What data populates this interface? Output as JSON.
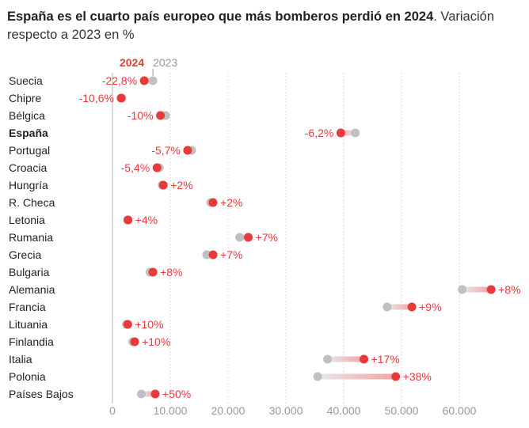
{
  "title_bold": "España es el cuarto país europeo que más bomberos perdió en 2024",
  "title_rest": ". Variación respecto a 2023 en %",
  "colors": {
    "y2024": "#e8393b",
    "y2023": "#bfbfc4",
    "label": "#e8393b",
    "grid": "#d9d9d9",
    "axis": "#999999"
  },
  "chart_data": {
    "type": "dumbbell",
    "legend": {
      "label_2024": "2024",
      "label_2023": "2023"
    },
    "xlim": [
      0,
      70000
    ],
    "xticks": [
      0,
      10000,
      20000,
      30000,
      40000,
      50000,
      60000
    ],
    "xtick_labels": [
      "0",
      "10.000",
      "20.000",
      "30.000",
      "40.000",
      "50.000",
      "60.000"
    ],
    "rows": [
      {
        "country": "Suecia",
        "v2023": 7000,
        "v2024": 5500,
        "label": "-22,8%",
        "bold": false
      },
      {
        "country": "Chipre",
        "v2023": 1650,
        "v2024": 1500,
        "label": "-10,6%",
        "bold": false
      },
      {
        "country": "Bélgica",
        "v2023": 9200,
        "v2024": 8300,
        "label": "-10%",
        "bold": false
      },
      {
        "country": "España",
        "v2023": 42000,
        "v2024": 39500,
        "label": "-6,2%",
        "bold": true
      },
      {
        "country": "Portugal",
        "v2023": 13700,
        "v2024": 13000,
        "label": "-5,7%",
        "bold": false
      },
      {
        "country": "Croacia",
        "v2023": 8100,
        "v2024": 7700,
        "label": "-5,4%",
        "bold": false
      },
      {
        "country": "Hungría",
        "v2023": 8600,
        "v2024": 8800,
        "label": "+2%",
        "bold": false
      },
      {
        "country": "R. Checa",
        "v2023": 17000,
        "v2024": 17400,
        "label": "+2%",
        "bold": false
      },
      {
        "country": "Letonia",
        "v2023": 2600,
        "v2024": 2700,
        "label": "+4%",
        "bold": false
      },
      {
        "country": "Rumania",
        "v2023": 22000,
        "v2024": 23500,
        "label": "+7%",
        "bold": false
      },
      {
        "country": "Grecia",
        "v2023": 16300,
        "v2024": 17400,
        "label": "+7%",
        "bold": false
      },
      {
        "country": "Bulgaria",
        "v2023": 6500,
        "v2024": 7000,
        "label": "+8%",
        "bold": false
      },
      {
        "country": "Alemania",
        "v2023": 60500,
        "v2024": 65500,
        "label": "+8%",
        "bold": false
      },
      {
        "country": "Francia",
        "v2023": 47500,
        "v2024": 51800,
        "label": "+9%",
        "bold": false
      },
      {
        "country": "Lituania",
        "v2023": 2400,
        "v2024": 2650,
        "label": "+10%",
        "bold": false
      },
      {
        "country": "Finlandia",
        "v2023": 3500,
        "v2024": 3850,
        "label": "+10%",
        "bold": false
      },
      {
        "country": "Italia",
        "v2023": 37200,
        "v2024": 43500,
        "label": "+17%",
        "bold": false
      },
      {
        "country": "Polonia",
        "v2023": 35500,
        "v2024": 49000,
        "label": "+38%",
        "bold": false
      },
      {
        "country": "Países Bajos",
        "v2023": 5000,
        "v2024": 7400,
        "label": "+50%",
        "bold": false
      }
    ]
  }
}
